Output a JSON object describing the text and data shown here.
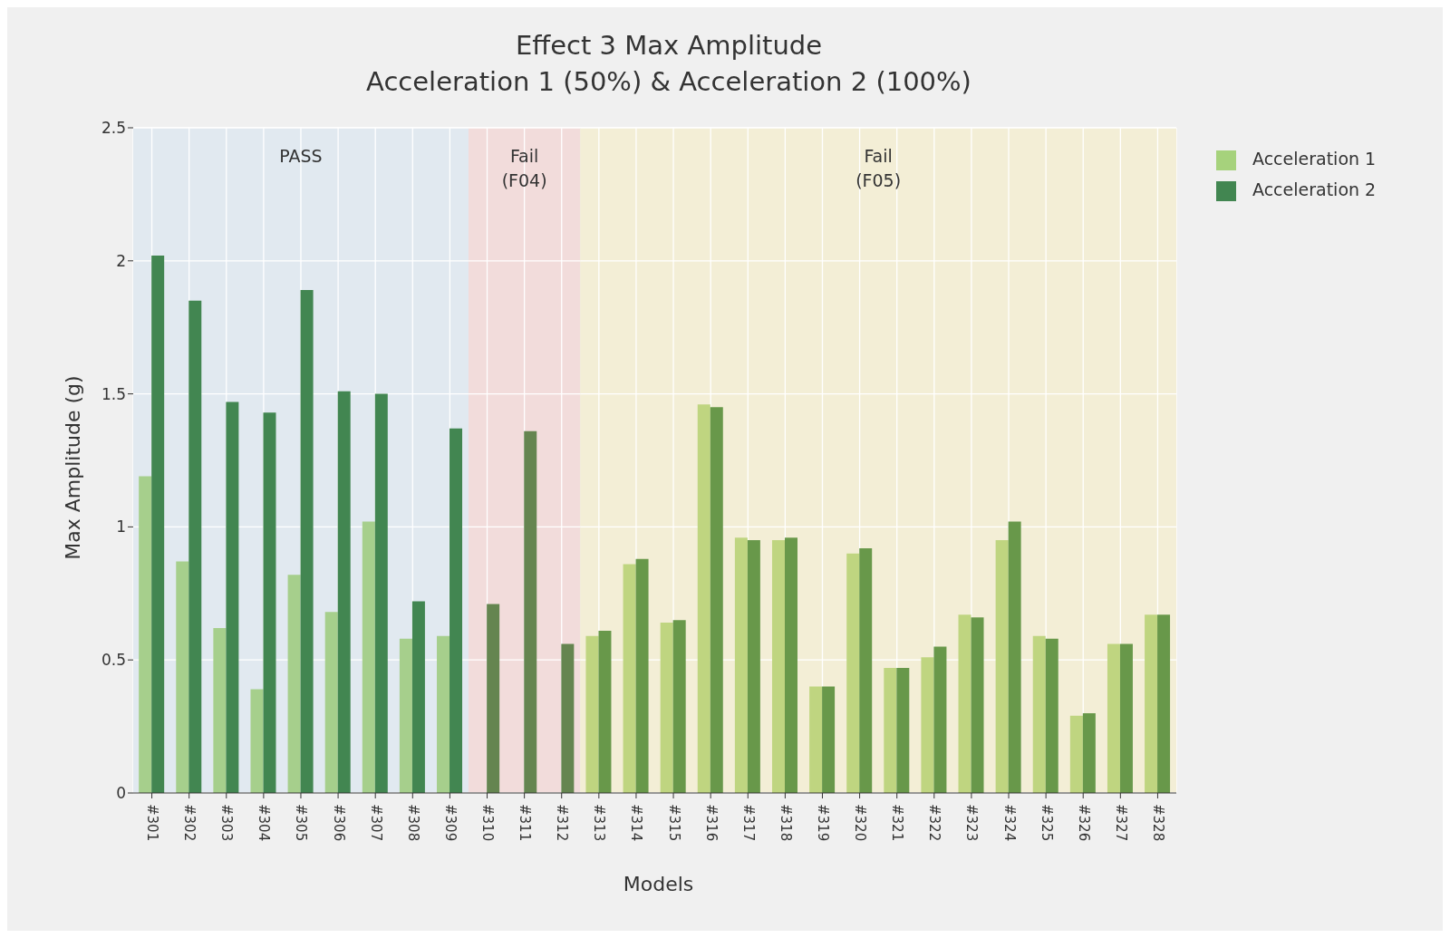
{
  "chart_data": {
    "type": "bar",
    "title": "Effect 3 Max Amplitude",
    "subtitle": "Acceleration 1 (50%) & Acceleration 2 (100%)",
    "xlabel": "Models",
    "ylabel": "Max Amplitude (g)",
    "categories": [
      "#301",
      "#302",
      "#303",
      "#304",
      "#305",
      "#306",
      "#307",
      "#308",
      "#309",
      "#310",
      "#311",
      "#312",
      "#313",
      "#314",
      "#315",
      "#316",
      "#317",
      "#318",
      "#319",
      "#320",
      "#321",
      "#322",
      "#323",
      "#324",
      "#325",
      "#326",
      "#327",
      "#328"
    ],
    "series": [
      {
        "name": "Acceleration 1",
        "color": "#a6d27c",
        "values": [
          1.19,
          0.87,
          0.62,
          0.39,
          0.82,
          0.68,
          1.02,
          0.58,
          0.59,
          null,
          null,
          null,
          0.59,
          0.86,
          0.64,
          1.46,
          0.96,
          0.95,
          0.4,
          0.9,
          0.47,
          0.51,
          0.67,
          0.95,
          0.59,
          0.29,
          0.56,
          0.67
        ],
        "colors": [
          "#a6cf8c",
          "#a6cf8c",
          "#a6cf8c",
          "#a6cf8c",
          "#a6cf8c",
          "#a6cf8c",
          "#a6cf8c",
          "#a6cf8c",
          "#a6cf8c",
          null,
          null,
          null,
          "#bfd580",
          "#bfd580",
          "#bfd580",
          "#bfd580",
          "#bfd580",
          "#bfd580",
          "#bfd580",
          "#bfd580",
          "#bfd580",
          "#bfd580",
          "#bfd580",
          "#bfd580",
          "#bfd580",
          "#bfd580",
          "#bfd580",
          "#bfd580"
        ]
      },
      {
        "name": "Acceleration 2",
        "color": "#428651",
        "values": [
          2.02,
          1.85,
          1.47,
          1.43,
          1.89,
          1.51,
          1.5,
          0.72,
          1.37,
          0.71,
          1.36,
          0.56,
          0.61,
          0.88,
          0.65,
          1.45,
          0.95,
          0.96,
          0.4,
          0.92,
          0.47,
          0.55,
          0.66,
          1.02,
          0.58,
          0.3,
          0.56,
          0.67
        ],
        "colors": [
          "#428651",
          "#428651",
          "#428651",
          "#428651",
          "#428651",
          "#428651",
          "#428651",
          "#428651",
          "#428651",
          "#658550",
          "#658550",
          "#658550",
          "#68984a",
          "#68984a",
          "#68984a",
          "#68984a",
          "#68984a",
          "#68984a",
          "#68984a",
          "#68984a",
          "#68984a",
          "#68984a",
          "#68984a",
          "#68984a",
          "#68984a",
          "#68984a",
          "#68984a",
          "#68984a"
        ]
      }
    ],
    "ylim": [
      0,
      2.5
    ],
    "yticks": [
      0,
      0.5,
      1,
      1.5,
      2,
      2.5
    ],
    "bands": [
      {
        "axis": "x",
        "from": "#301",
        "to": "#309",
        "label": "PASS",
        "color": "#e1e9f0"
      },
      {
        "axis": "x",
        "from": "#310",
        "to": "#312",
        "label": "Fail\n(F04)",
        "color": "#f2dcdb"
      },
      {
        "axis": "x",
        "from": "#313",
        "to": "#328",
        "label": "Fail\n(F05)",
        "color": "#f3eed6"
      }
    ],
    "grid": true,
    "legend": "top right"
  }
}
